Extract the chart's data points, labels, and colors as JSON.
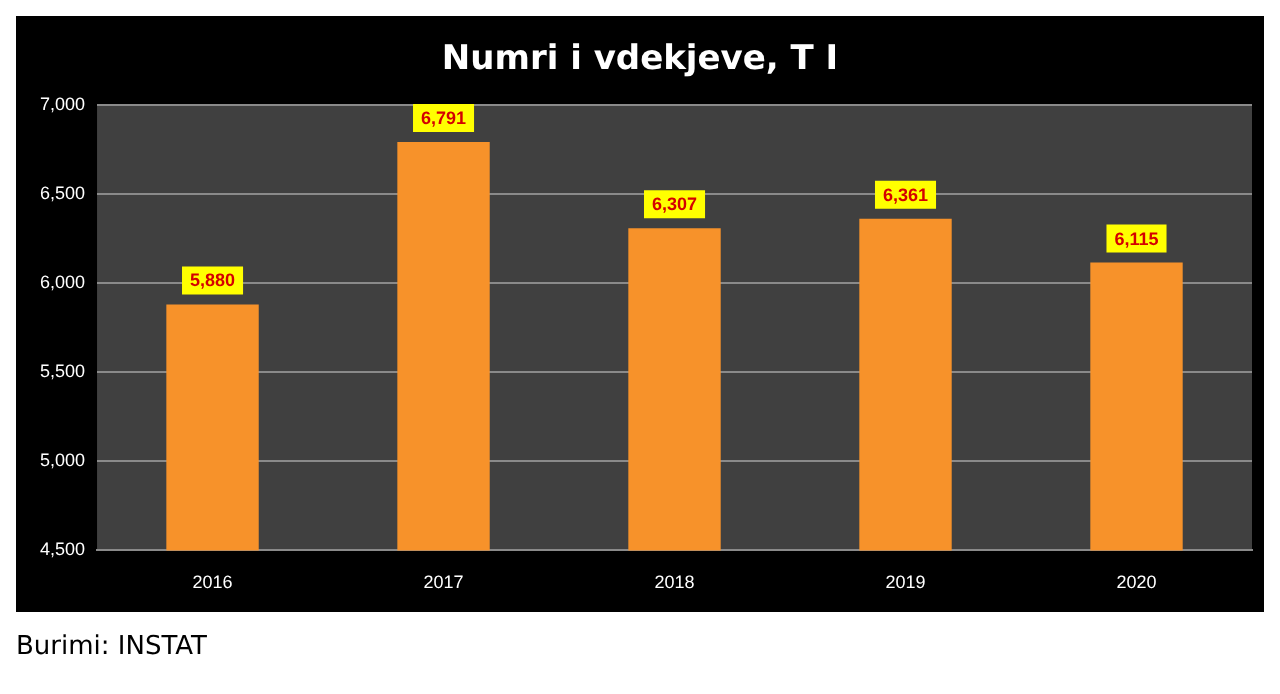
{
  "chart_data": {
    "type": "bar",
    "title": "Numri i vdekjeve, T I",
    "categories": [
      "2016",
      "2017",
      "2018",
      "2019",
      "2020"
    ],
    "values": [
      5880,
      6791,
      6307,
      6361,
      6115
    ],
    "color": "#f7922a",
    "value_labels": [
      "5,880",
      "6,791",
      "6,307",
      "6,361",
      "6,115"
    ],
    "ylim": [
      4500,
      7000
    ],
    "yticks": [
      {
        "value": 4500,
        "label": "4,500"
      },
      {
        "value": 5000,
        "label": "5,000"
      },
      {
        "value": 5500,
        "label": "5,500"
      },
      {
        "value": 6000,
        "label": "6,000"
      },
      {
        "value": 6500,
        "label": "6,500"
      },
      {
        "value": 7000,
        "label": "7,000"
      }
    ],
    "grid": "y",
    "legend": false,
    "annotations": [
      "Burimi: INSTAT"
    ]
  }
}
